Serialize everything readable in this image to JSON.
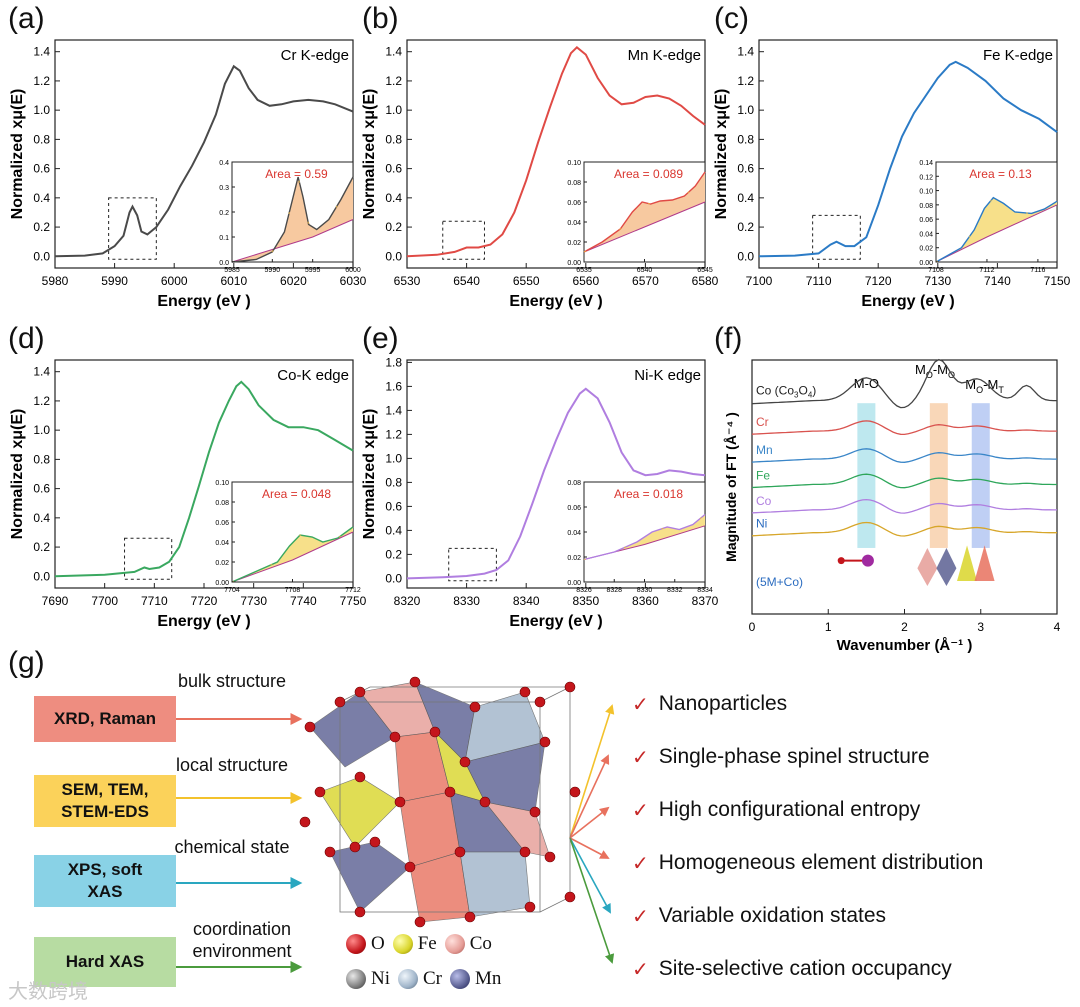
{
  "panels": [
    {
      "tag": "(a)",
      "edge": "Cr K-edge",
      "color": "#4a4a4a",
      "fill": "#f7c9a0",
      "xlim": [
        5980,
        6030
      ],
      "xticks": [
        5980,
        5990,
        6000,
        6010,
        6020,
        6030
      ],
      "ylim": [
        -0.08,
        1.48
      ],
      "yticks": [
        0.0,
        0.2,
        0.4,
        0.6,
        0.8,
        1.0,
        1.2,
        1.4
      ],
      "xlabel": "Energy (eV )",
      "ylabel": "Normalized xμ(E)",
      "curve": [
        [
          5980,
          0.0
        ],
        [
          5985,
          0.005
        ],
        [
          5988,
          0.02
        ],
        [
          5990,
          0.07
        ],
        [
          5991.5,
          0.14
        ],
        [
          5992.5,
          0.3
        ],
        [
          5993,
          0.34
        ],
        [
          5993.8,
          0.28
        ],
        [
          5994.5,
          0.17
        ],
        [
          5995.5,
          0.15
        ],
        [
          5997,
          0.2
        ],
        [
          5999,
          0.32
        ],
        [
          6001,
          0.48
        ],
        [
          6003,
          0.62
        ],
        [
          6005,
          0.78
        ],
        [
          6007,
          0.97
        ],
        [
          6008.5,
          1.18
        ],
        [
          6010,
          1.3
        ],
        [
          6011,
          1.27
        ],
        [
          6012.5,
          1.15
        ],
        [
          6014,
          1.07
        ],
        [
          6016,
          1.03
        ],
        [
          6018,
          1.04
        ],
        [
          6020,
          1.06
        ],
        [
          6022.5,
          1.07
        ],
        [
          6025,
          1.06
        ],
        [
          6027,
          1.04
        ],
        [
          6030,
          0.99
        ]
      ],
      "zoom_box": [
        5989,
        5997,
        -0.02,
        0.4
      ],
      "inset": {
        "xlim": [
          5985,
          6000
        ],
        "xticks": [
          5985,
          5990,
          5995,
          6000
        ],
        "ylim": [
          0,
          0.4
        ],
        "yticks": [
          0.0,
          0.1,
          0.2,
          0.3,
          0.4
        ],
        "area_label": "Area = 0.59",
        "curve": [
          [
            5985,
            0.0
          ],
          [
            5988,
            0.01
          ],
          [
            5990,
            0.04
          ],
          [
            5991.5,
            0.12
          ],
          [
            5992.5,
            0.25
          ],
          [
            5993.2,
            0.34
          ],
          [
            5993.8,
            0.26
          ],
          [
            5994.5,
            0.15
          ],
          [
            5995.5,
            0.13
          ],
          [
            5997,
            0.17
          ],
          [
            5998.5,
            0.25
          ],
          [
            6000,
            0.34
          ]
        ],
        "baseline": [
          [
            5985,
            0.0
          ],
          [
            5990,
            0.05
          ],
          [
            5995,
            0.1
          ],
          [
            6000,
            0.17
          ]
        ]
      }
    },
    {
      "tag": "(b)",
      "edge": "Mn K-edge",
      "color": "#e04a45",
      "fill": "#f7c9a0",
      "xlim": [
        6530,
        6580
      ],
      "xticks": [
        6530,
        6540,
        6550,
        6560,
        6570,
        6580
      ],
      "ylim": [
        -0.08,
        1.48
      ],
      "yticks": [
        0.0,
        0.2,
        0.4,
        0.6,
        0.8,
        1.0,
        1.2,
        1.4
      ],
      "xlabel": "Energy (eV )",
      "ylabel": "Normalized xμ(E)",
      "curve": [
        [
          6530,
          0.0
        ],
        [
          6535,
          0.01
        ],
        [
          6538,
          0.03
        ],
        [
          6540,
          0.06
        ],
        [
          6542,
          0.06
        ],
        [
          6544,
          0.08
        ],
        [
          6546,
          0.15
        ],
        [
          6548,
          0.3
        ],
        [
          6550,
          0.52
        ],
        [
          6552,
          0.78
        ],
        [
          6554,
          1.02
        ],
        [
          6556,
          1.25
        ],
        [
          6557.5,
          1.39
        ],
        [
          6558.5,
          1.43
        ],
        [
          6560,
          1.38
        ],
        [
          6562,
          1.22
        ],
        [
          6564,
          1.1
        ],
        [
          6566,
          1.04
        ],
        [
          6568,
          1.05
        ],
        [
          6570,
          1.09
        ],
        [
          6572,
          1.1
        ],
        [
          6574,
          1.08
        ],
        [
          6576,
          1.03
        ],
        [
          6578,
          0.96
        ],
        [
          6580,
          0.9
        ]
      ],
      "zoom_box": [
        6536,
        6543,
        -0.02,
        0.24
      ],
      "inset": {
        "xlim": [
          6535,
          6545
        ],
        "xticks": [
          6535,
          6540,
          6545
        ],
        "ylim": [
          0,
          0.1
        ],
        "yticks": [
          0.0,
          0.02,
          0.04,
          0.06,
          0.08,
          0.1
        ],
        "area_label": "Area = 0.089",
        "curve": [
          [
            6535,
            0.01
          ],
          [
            6536.5,
            0.02
          ],
          [
            6538,
            0.033
          ],
          [
            6539,
            0.05
          ],
          [
            6539.8,
            0.06
          ],
          [
            6540.5,
            0.058
          ],
          [
            6541.3,
            0.061
          ],
          [
            6542.3,
            0.062
          ],
          [
            6543.3,
            0.066
          ],
          [
            6544.2,
            0.076
          ],
          [
            6545,
            0.09
          ]
        ],
        "baseline": [
          [
            6535,
            0.01
          ],
          [
            6540,
            0.035
          ],
          [
            6545,
            0.06
          ]
        ]
      }
    },
    {
      "tag": "(c)",
      "edge": "Fe K-edge",
      "color": "#2b7bc6",
      "fill": "#f7e08a",
      "xlim": [
        7100,
        7150
      ],
      "xticks": [
        7100,
        7110,
        7120,
        7130,
        7140,
        7150
      ],
      "ylim": [
        -0.08,
        1.48
      ],
      "yticks": [
        0.0,
        0.2,
        0.4,
        0.6,
        0.8,
        1.0,
        1.2,
        1.4
      ],
      "xlabel": "Energy (eV )",
      "ylabel": "Normalized xμ(E)",
      "curve": [
        [
          7100,
          0.0
        ],
        [
          7106,
          0.005
        ],
        [
          7110,
          0.02
        ],
        [
          7112,
          0.08
        ],
        [
          7113,
          0.1
        ],
        [
          7114.5,
          0.07
        ],
        [
          7116,
          0.07
        ],
        [
          7118,
          0.13
        ],
        [
          7120,
          0.35
        ],
        [
          7122,
          0.6
        ],
        [
          7124,
          0.82
        ],
        [
          7126,
          0.98
        ],
        [
          7128,
          1.1
        ],
        [
          7130,
          1.22
        ],
        [
          7132,
          1.31
        ],
        [
          7133,
          1.33
        ],
        [
          7135,
          1.29
        ],
        [
          7138,
          1.2
        ],
        [
          7141,
          1.08
        ],
        [
          7144,
          1.0
        ],
        [
          7147,
          0.94
        ],
        [
          7150,
          0.85
        ]
      ],
      "zoom_box": [
        7109,
        7117,
        -0.02,
        0.28
      ],
      "inset": {
        "xlim": [
          7108,
          7117.5
        ],
        "xticks": [
          7108,
          7112,
          7116
        ],
        "ylim": [
          0,
          0.14
        ],
        "yticks": [
          0.0,
          0.02,
          0.04,
          0.06,
          0.08,
          0.1,
          0.12,
          0.14
        ],
        "area_label": "Area = 0.13",
        "curve": [
          [
            7108,
            0.0
          ],
          [
            7110,
            0.02
          ],
          [
            7111,
            0.045
          ],
          [
            7111.8,
            0.075
          ],
          [
            7112.5,
            0.09
          ],
          [
            7113.3,
            0.082
          ],
          [
            7114.2,
            0.07
          ],
          [
            7115.5,
            0.068
          ],
          [
            7116.5,
            0.074
          ],
          [
            7117.5,
            0.085
          ]
        ],
        "baseline": [
          [
            7108,
            0.0
          ],
          [
            7112,
            0.035
          ],
          [
            7117.5,
            0.08
          ]
        ]
      }
    },
    {
      "tag": "(d)",
      "edge": "Co-K edge",
      "color": "#3aa860",
      "fill": "#f7e08a",
      "xlim": [
        7690,
        7750
      ],
      "xticks": [
        7690,
        7700,
        7710,
        7720,
        7730,
        7740,
        7750
      ],
      "ylim": [
        -0.08,
        1.48
      ],
      "yticks": [
        0.0,
        0.2,
        0.4,
        0.6,
        0.8,
        1.0,
        1.2,
        1.4
      ],
      "xlabel": "Energy (eV )",
      "ylabel": "Normalized xμ(E)",
      "curve": [
        [
          7690,
          0.0
        ],
        [
          7700,
          0.01
        ],
        [
          7706,
          0.03
        ],
        [
          7708,
          0.06
        ],
        [
          7709,
          0.05
        ],
        [
          7711,
          0.06
        ],
        [
          7713,
          0.1
        ],
        [
          7715,
          0.2
        ],
        [
          7717,
          0.4
        ],
        [
          7719,
          0.62
        ],
        [
          7721,
          0.85
        ],
        [
          7723,
          1.05
        ],
        [
          7725,
          1.2
        ],
        [
          7726.5,
          1.3
        ],
        [
          7727.5,
          1.33
        ],
        [
          7729,
          1.28
        ],
        [
          7731,
          1.17
        ],
        [
          7734,
          1.07
        ],
        [
          7737,
          1.02
        ],
        [
          7740,
          1.02
        ],
        [
          7743,
          1.0
        ],
        [
          7746,
          0.94
        ],
        [
          7750,
          0.86
        ]
      ],
      "zoom_box": [
        7704,
        7713.5,
        -0.02,
        0.26
      ],
      "inset": {
        "xlim": [
          7704,
          7712
        ],
        "xticks": [
          7704,
          7708,
          7712
        ],
        "ylim": [
          0,
          0.1
        ],
        "yticks": [
          0.0,
          0.02,
          0.04,
          0.06,
          0.08,
          0.1
        ],
        "area_label": "Area = 0.048",
        "curve": [
          [
            7704,
            0.0
          ],
          [
            7705.5,
            0.01
          ],
          [
            7707,
            0.02
          ],
          [
            7707.8,
            0.036
          ],
          [
            7708.5,
            0.047
          ],
          [
            7709.3,
            0.045
          ],
          [
            7710,
            0.04
          ],
          [
            7711,
            0.044
          ],
          [
            7712,
            0.055
          ]
        ],
        "baseline": [
          [
            7704,
            0.0
          ],
          [
            7708,
            0.022
          ],
          [
            7712,
            0.05
          ]
        ]
      }
    },
    {
      "tag": "(e)",
      "edge": "Ni-K edge",
      "color": "#b07ee0",
      "fill": "#f7e08a",
      "xlim": [
        8320,
        8370
      ],
      "xticks": [
        8320,
        8330,
        8340,
        8350,
        8360,
        8370
      ],
      "ylim": [
        -0.08,
        1.82
      ],
      "yticks": [
        0.0,
        0.2,
        0.4,
        0.6,
        0.8,
        1.0,
        1.2,
        1.4,
        1.6,
        1.8
      ],
      "xlabel": "Energy (eV )",
      "ylabel": "Normalized xμ(E)",
      "curve": [
        [
          8320,
          0.0
        ],
        [
          8326,
          0.01
        ],
        [
          8330,
          0.02
        ],
        [
          8333,
          0.04
        ],
        [
          8335,
          0.07
        ],
        [
          8337,
          0.15
        ],
        [
          8339,
          0.35
        ],
        [
          8341,
          0.62
        ],
        [
          8343,
          0.9
        ],
        [
          8345,
          1.15
        ],
        [
          8347,
          1.38
        ],
        [
          8349,
          1.54
        ],
        [
          8350,
          1.58
        ],
        [
          8352,
          1.5
        ],
        [
          8354,
          1.3
        ],
        [
          8356,
          1.05
        ],
        [
          8358,
          0.9
        ],
        [
          8360,
          0.86
        ],
        [
          8362,
          0.87
        ],
        [
          8364,
          0.9
        ],
        [
          8366,
          0.89
        ],
        [
          8368,
          0.87
        ],
        [
          8370,
          0.86
        ]
      ],
      "zoom_box": [
        8327,
        8335,
        -0.02,
        0.25
      ],
      "inset": {
        "xlim": [
          8326,
          8334
        ],
        "xticks": [
          8326,
          8328,
          8330,
          8332,
          8334
        ],
        "ylim": [
          0,
          0.08
        ],
        "yticks": [
          0.0,
          0.02,
          0.04,
          0.06,
          0.08
        ],
        "area_label": "Area = 0.018",
        "curve": [
          [
            8326,
            0.018
          ],
          [
            8328,
            0.024
          ],
          [
            8329.5,
            0.032
          ],
          [
            8330.5,
            0.04
          ],
          [
            8331.5,
            0.044
          ],
          [
            8332.3,
            0.042
          ],
          [
            8333.2,
            0.046
          ],
          [
            8334,
            0.054
          ]
        ],
        "baseline": [
          [
            8326,
            0.018
          ],
          [
            8330,
            0.03
          ],
          [
            8334,
            0.045
          ]
        ]
      }
    }
  ],
  "panel_f": {
    "tag": "(f)",
    "xlabel": "Wavenumber (Å⁻¹ )",
    "ylabel": "Magnitude of FT (Å⁻⁴ )",
    "xlim": [
      0,
      4
    ],
    "xticks": [
      0,
      1,
      2,
      3,
      4
    ],
    "bands": [
      {
        "label": "M-O",
        "x": 1.5,
        "color": "#a8e0ea"
      },
      {
        "label": "MO-MO",
        "x": 2.45,
        "color": "#f7c9a0"
      },
      {
        "label": "MO-MT",
        "x": 3.0,
        "color": "#a9bff0"
      }
    ],
    "band_labels": [
      "M-O",
      "MO-MO",
      "MO-MT"
    ],
    "band_label_main": [
      "M-O",
      "M",
      "M"
    ],
    "band_label_sub": [
      "",
      "O",
      "O"
    ],
    "band_label_mid": [
      "",
      "-M",
      "-M"
    ],
    "band_label_sub2": [
      "",
      "O",
      "T"
    ],
    "series": [
      {
        "name": "Co (Co3O4)",
        "name_main": "Co (Co",
        "name_sub": "3",
        "name_mid": "O",
        "name_sub2": "4",
        "name_end": ")",
        "color": "#444444",
        "offset": 8.4
      },
      {
        "name": "Cr",
        "color": "#d9534f",
        "offset": 7.2
      },
      {
        "name": "Mn",
        "color": "#3a86c8",
        "offset": 6.1
      },
      {
        "name": "Fe",
        "color": "#2ea65a",
        "offset": 5.1
      },
      {
        "name": "Co",
        "color": "#b07ee0",
        "offset": 4.1
      },
      {
        "name": "Ni",
        "color": "#d7a62a",
        "offset": 3.2
      }
    ],
    "bottom_label": "(5M+Co)"
  },
  "panel_g": {
    "tag": "(g)",
    "techniques": [
      {
        "label": "XRD, Raman",
        "color": "#ee8d80",
        "arrow": "#e8715e",
        "desc": "bulk structure"
      },
      {
        "label": "SEM, TEM, STEM-EDS",
        "color": "#fbd25a",
        "arrow": "#f3c22c",
        "desc": "local structure"
      },
      {
        "label": "XPS, soft XAS",
        "color": "#89d2e6",
        "arrow": "#2aa7c0",
        "desc": "chemical state"
      },
      {
        "label": "Hard XAS",
        "color": "#b7dca2",
        "arrow": "#4b9b3d",
        "desc": "coordination environment"
      }
    ],
    "properties": [
      "Nanoparticles",
      "Single-phase spinel structure",
      "High configurational entropy",
      "Homogeneous element distribution",
      "Variable oxidation states",
      "Site-selective cation occupancy"
    ],
    "check": "✓",
    "property_arrow_colors": [
      "#f3c22c",
      "#e8715e",
      "#e8715e",
      "#e8715e",
      "#2aa7c0",
      "#4b9b3d"
    ],
    "legend": [
      {
        "label": "O",
        "color": "#c4161c"
      },
      {
        "label": "Fe",
        "color": "#d9d52a"
      },
      {
        "label": "Co",
        "color": "#e59c96"
      },
      {
        "label": "Ni",
        "color": "#7d7d7d"
      },
      {
        "label": "Cr",
        "color": "#9fb4c9"
      },
      {
        "label": "Mn",
        "color": "#5a5f92"
      }
    ]
  },
  "watermark": "大数跨境"
}
